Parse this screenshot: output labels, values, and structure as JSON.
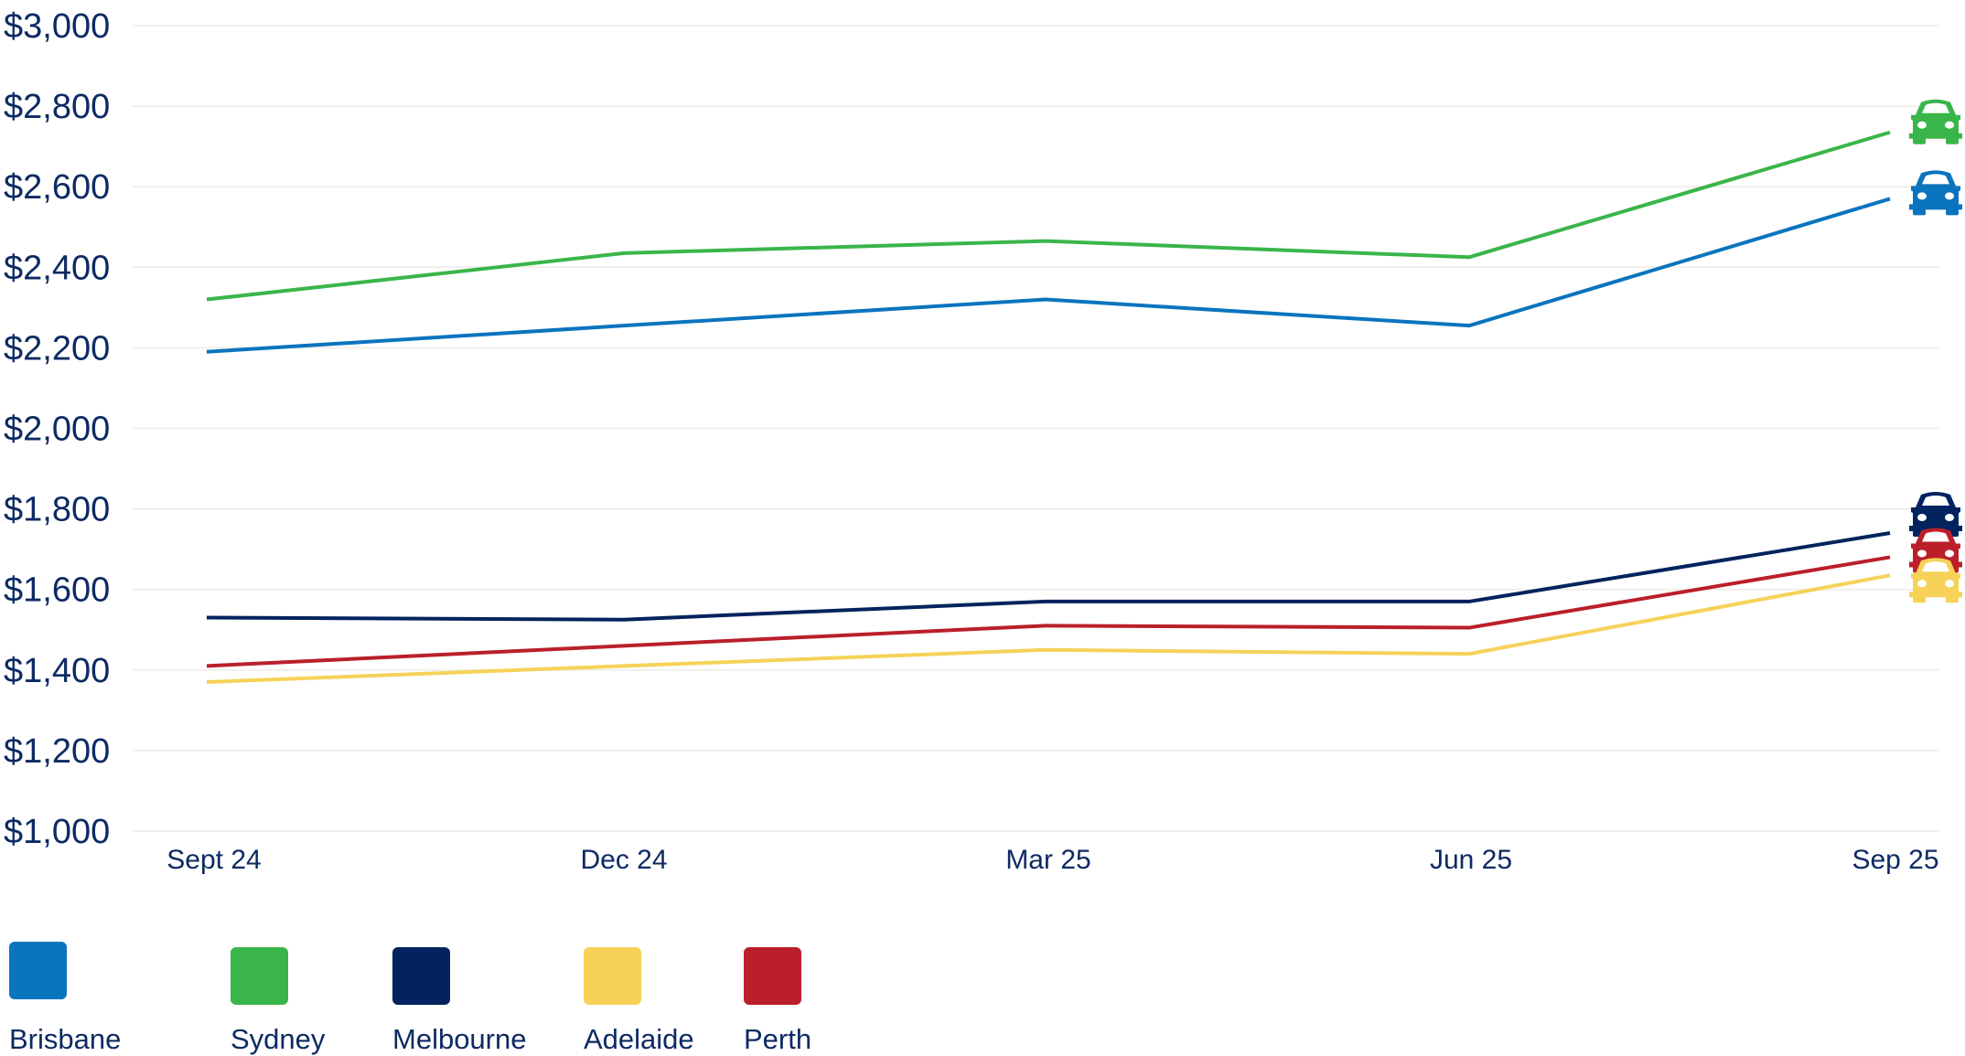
{
  "chart_data": {
    "type": "line",
    "title": "",
    "xlabel": "",
    "ylabel": "",
    "categories": [
      "Sept 24",
      "Dec 24",
      "Mar 25",
      "Jun 25",
      "Sep 25"
    ],
    "ylim": [
      1000,
      3000
    ],
    "yticks": [
      1000,
      1200,
      1400,
      1600,
      1800,
      2000,
      2200,
      2400,
      2600,
      2800,
      3000
    ],
    "ytick_labels": [
      "$1,000",
      "$1,200",
      "$1,400",
      "$1,600",
      "$1,800",
      "$2,000",
      "$2,200",
      "$2,400",
      "$2,600",
      "$2,800",
      "$3,000"
    ],
    "grid": true,
    "legend_placement": "bottom-left",
    "end_marker_icon": "car-icon",
    "series": [
      {
        "name": "Brisbane",
        "color": "#0a74be",
        "values": [
          2190,
          2255,
          2320,
          2255,
          2570
        ]
      },
      {
        "name": "Sydney",
        "color": "#3ab54a",
        "values": [
          2320,
          2435,
          2465,
          2425,
          2735
        ]
      },
      {
        "name": "Melbourne",
        "color": "#03235e",
        "values": [
          1530,
          1525,
          1570,
          1570,
          1740
        ]
      },
      {
        "name": "Adelaide",
        "color": "#f6d259",
        "values": [
          1370,
          1410,
          1450,
          1440,
          1635
        ]
      },
      {
        "name": "Perth",
        "color": "#bb1f2a",
        "values": [
          1410,
          1460,
          1510,
          1505,
          1680
        ]
      }
    ]
  }
}
